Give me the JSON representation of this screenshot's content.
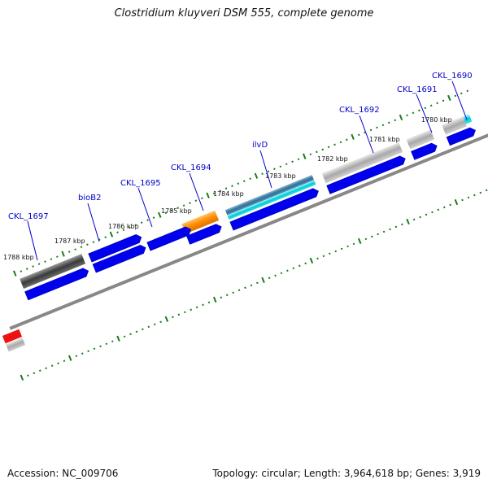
{
  "title": "Clostridium kluyveri DSM 555, complete genome",
  "footer": {
    "accession": "Accession: NC_009706",
    "summary": "Topology: circular; Length: 3,964,618 bp; Genes: 3,919"
  },
  "colors": {
    "gene_label": "#0000cc",
    "cds": "#0000ee",
    "tick": "#1a7a1a",
    "backbone": "#888888"
  },
  "kbp_labels": [
    "1788 kbp",
    "1787 kbp",
    "1786 kbp",
    "1785 kbp",
    "1784 kbp",
    "1783 kbp",
    "1782 kbp",
    "1781 kbp",
    "1780 kbp"
  ],
  "gene_labels": [
    "CKL_1697",
    "bioB2",
    "CKL_1695",
    "CKL_1694",
    "ilvD",
    "CKL_1692",
    "CKL_1691",
    "CKL_1690"
  ]
}
